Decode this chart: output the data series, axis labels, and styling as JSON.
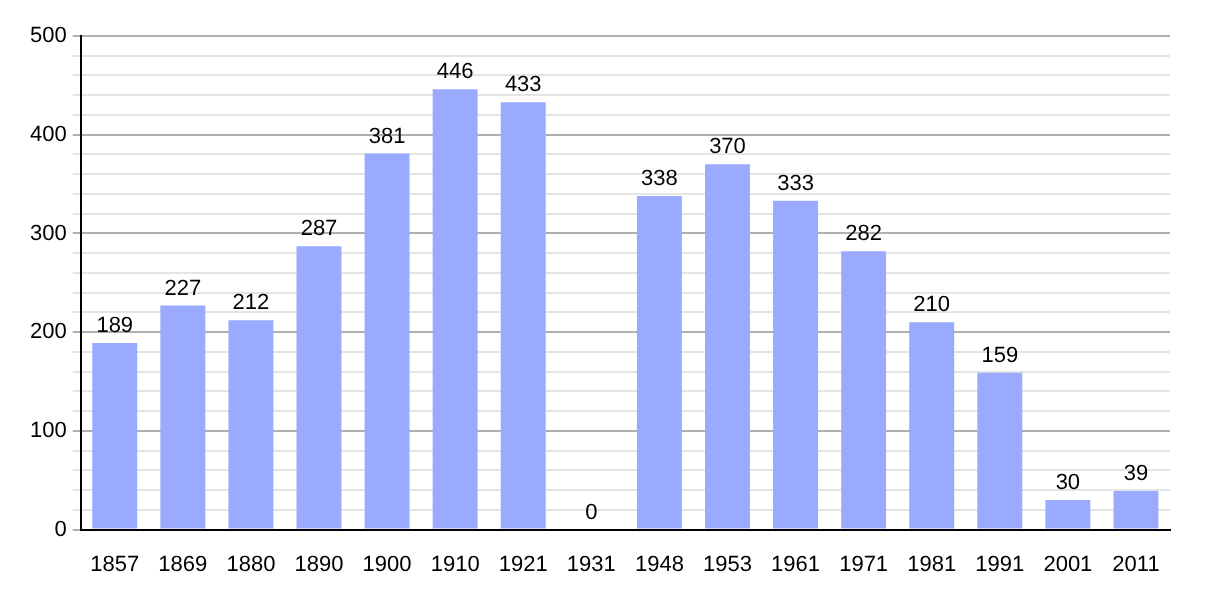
{
  "chart_data": {
    "type": "bar",
    "categories": [
      "1857",
      "1869",
      "1880",
      "1890",
      "1900",
      "1910",
      "1921",
      "1931",
      "1948",
      "1953",
      "1961",
      "1971",
      "1981",
      "1991",
      "2001",
      "2011"
    ],
    "values": [
      189,
      227,
      212,
      287,
      381,
      446,
      433,
      0,
      338,
      370,
      333,
      282,
      210,
      159,
      30,
      39
    ],
    "color": "#99aaff",
    "ylim": [
      0,
      500
    ],
    "yticks": [
      0,
      {
        "value": 20,
        "label": null
      },
      {
        "value": 40,
        "label": null
      },
      {
        "value": 60,
        "label": null
      },
      {
        "value": 80,
        "label": null
      },
      100,
      {
        "value": 120,
        "label": null
      },
      {
        "value": 140,
        "label": null
      },
      {
        "value": 160,
        "label": null
      },
      {
        "value": 180,
        "label": null
      },
      200,
      {
        "value": 220,
        "label": null
      },
      {
        "value": 240,
        "label": null
      },
      {
        "value": 260,
        "label": null
      },
      {
        "value": 280,
        "label": null
      },
      300,
      {
        "value": 320,
        "label": null
      },
      {
        "value": 340,
        "label": null
      },
      {
        "value": 360,
        "label": null
      },
      {
        "value": 380,
        "label": null
      },
      400,
      {
        "value": 420,
        "label": null
      },
      {
        "value": 440,
        "label": null
      },
      {
        "value": 460,
        "label": null
      },
      {
        "value": 480,
        "label": null
      },
      500
    ],
    "grid": "y",
    "data_labels": true
  }
}
